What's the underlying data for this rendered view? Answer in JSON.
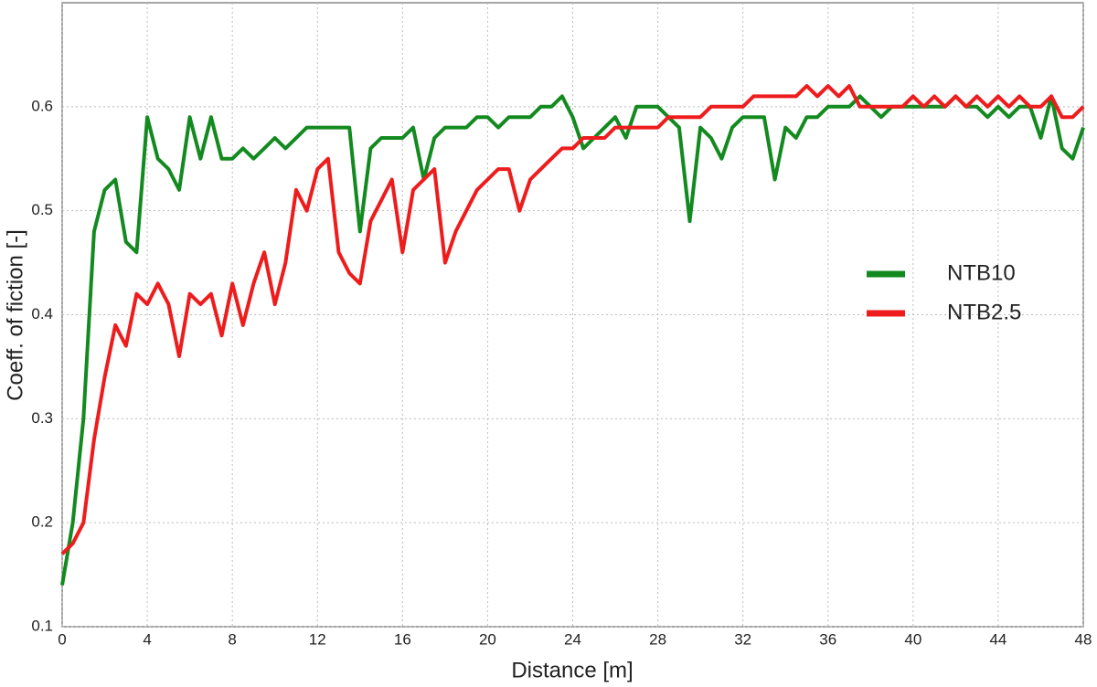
{
  "chart_data": {
    "type": "line",
    "xlabel": "Distance [m]",
    "ylabel": "Coeff. of fiction [-]",
    "x": [
      0,
      0.5,
      1,
      1.5,
      2,
      2.5,
      3,
      3.5,
      4,
      4.5,
      5,
      5.5,
      6,
      6.5,
      7,
      7.5,
      8,
      8.5,
      9,
      9.5,
      10,
      10.5,
      11,
      11.5,
      12,
      12.5,
      13,
      13.5,
      14,
      14.5,
      15,
      15.5,
      16,
      16.5,
      17,
      17.5,
      18,
      18.5,
      19,
      19.5,
      20,
      20.5,
      21,
      21.5,
      22,
      22.5,
      23,
      23.5,
      24,
      24.5,
      25,
      25.5,
      26,
      26.5,
      27,
      27.5,
      28,
      28.5,
      29,
      29.5,
      30,
      30.5,
      31,
      31.5,
      32,
      32.5,
      33,
      33.5,
      34,
      34.5,
      35,
      35.5,
      36,
      36.5,
      37,
      37.5,
      38,
      38.5,
      39,
      39.5,
      40,
      40.5,
      41,
      41.5,
      42,
      42.5,
      43,
      43.5,
      44,
      44.5,
      45,
      45.5,
      46,
      46.5,
      47,
      47.5,
      48
    ],
    "series": [
      {
        "name": "NTB10",
        "color": "#138a1f",
        "values": [
          0.14,
          0.2,
          0.3,
          0.48,
          0.52,
          0.53,
          0.47,
          0.46,
          0.59,
          0.55,
          0.54,
          0.52,
          0.59,
          0.55,
          0.59,
          0.55,
          0.55,
          0.56,
          0.55,
          0.56,
          0.57,
          0.56,
          0.57,
          0.58,
          0.58,
          0.58,
          0.58,
          0.58,
          0.48,
          0.56,
          0.57,
          0.57,
          0.57,
          0.58,
          0.53,
          0.57,
          0.58,
          0.58,
          0.58,
          0.59,
          0.59,
          0.58,
          0.59,
          0.59,
          0.59,
          0.6,
          0.6,
          0.61,
          0.59,
          0.56,
          0.57,
          0.58,
          0.59,
          0.57,
          0.6,
          0.6,
          0.6,
          0.59,
          0.58,
          0.49,
          0.58,
          0.57,
          0.55,
          0.58,
          0.59,
          0.59,
          0.59,
          0.53,
          0.58,
          0.57,
          0.59,
          0.59,
          0.6,
          0.6,
          0.6,
          0.61,
          0.6,
          0.59,
          0.6,
          0.6,
          0.6,
          0.6,
          0.6,
          0.6,
          0.61,
          0.6,
          0.6,
          0.59,
          0.6,
          0.59,
          0.6,
          0.6,
          0.57,
          0.61,
          0.56,
          0.55,
          0.58
        ]
      },
      {
        "name": "NTB2.5",
        "color": "#ee1c1c",
        "values": [
          0.17,
          0.18,
          0.2,
          0.28,
          0.34,
          0.39,
          0.37,
          0.42,
          0.41,
          0.43,
          0.41,
          0.36,
          0.42,
          0.41,
          0.42,
          0.38,
          0.43,
          0.39,
          0.43,
          0.46,
          0.41,
          0.45,
          0.52,
          0.5,
          0.54,
          0.55,
          0.46,
          0.44,
          0.43,
          0.49,
          0.51,
          0.53,
          0.46,
          0.52,
          0.53,
          0.54,
          0.45,
          0.48,
          0.5,
          0.52,
          0.53,
          0.54,
          0.54,
          0.5,
          0.53,
          0.54,
          0.55,
          0.56,
          0.56,
          0.57,
          0.57,
          0.57,
          0.58,
          0.58,
          0.58,
          0.58,
          0.58,
          0.59,
          0.59,
          0.59,
          0.59,
          0.6,
          0.6,
          0.6,
          0.6,
          0.61,
          0.61,
          0.61,
          0.61,
          0.61,
          0.62,
          0.61,
          0.62,
          0.61,
          0.62,
          0.6,
          0.6,
          0.6,
          0.6,
          0.6,
          0.61,
          0.6,
          0.61,
          0.6,
          0.61,
          0.6,
          0.61,
          0.6,
          0.61,
          0.6,
          0.61,
          0.6,
          0.6,
          0.61,
          0.59,
          0.59,
          0.6
        ]
      }
    ],
    "xlim": [
      0,
      48
    ],
    "xticks": [
      0,
      4,
      8,
      12,
      16,
      20,
      24,
      28,
      32,
      36,
      40,
      44,
      48
    ],
    "ylim": [
      0.1,
      0.7
    ],
    "yticks": [
      0.1,
      0.2,
      0.3,
      0.4,
      0.5,
      0.6
    ],
    "grid": true,
    "legend": "right"
  }
}
